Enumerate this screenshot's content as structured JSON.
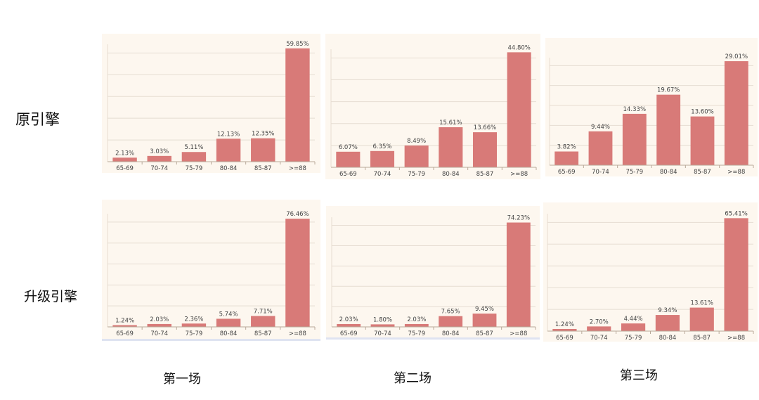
{
  "row_labels": [
    "原引擎",
    "升级引擎"
  ],
  "col_labels": [
    "第一场",
    "第二场",
    "第三场"
  ],
  "colors": {
    "bar": "#d87a78",
    "panel_bg": "#fdf7ef",
    "grid": "#e6ddd2",
    "axis": "#b9aa9a",
    "text": "#444444"
  },
  "chart_data": [
    {
      "type": "bar",
      "categories": [
        "65-69",
        "70-74",
        "75-79",
        "80-84",
        "85-87",
        ">=88"
      ],
      "values": [
        2.13,
        3.03,
        5.11,
        12.13,
        12.35,
        59.85
      ],
      "value_labels": [
        "2.13%",
        "3.03%",
        "5.11%",
        "12.13%",
        "12.35%",
        "59.85%"
      ],
      "ylim": [
        0,
        62
      ],
      "grid": true
    },
    {
      "type": "bar",
      "categories": [
        "65-69",
        "70-74",
        "75-79",
        "80-84",
        "85-87",
        ">=88"
      ],
      "values": [
        6.07,
        6.35,
        8.49,
        15.61,
        13.66,
        44.8
      ],
      "value_labels": [
        "6.07%",
        "6.35%",
        "8.49%",
        "15.61%",
        "13.66%",
        "44.80%"
      ],
      "ylim": [
        0,
        46
      ],
      "grid": true
    },
    {
      "type": "bar",
      "categories": [
        "65-69",
        "70-74",
        "75-79",
        "80-84",
        "85-87",
        ">=88"
      ],
      "values": [
        3.82,
        9.44,
        14.33,
        19.67,
        13.6,
        29.01
      ],
      "value_labels": [
        "3.82%",
        "9.44%",
        "14.33%",
        "19.67%",
        "13.60%",
        "29.01%"
      ],
      "ylim": [
        0,
        30
      ],
      "grid": true
    },
    {
      "type": "bar",
      "categories": [
        "65-69",
        "70-74",
        "75-79",
        "80-84",
        "85-87",
        ">=88"
      ],
      "values": [
        1.24,
        2.03,
        2.36,
        5.74,
        7.71,
        76.46
      ],
      "value_labels": [
        "1.24%",
        "2.03%",
        "2.36%",
        "5.74%",
        "7.71%",
        "76.46%"
      ],
      "ylim": [
        0,
        80
      ],
      "grid": true
    },
    {
      "type": "bar",
      "categories": [
        "65-69",
        "70-74",
        "75-79",
        "80-84",
        "85-87",
        ">=88"
      ],
      "values": [
        2.03,
        1.8,
        2.03,
        7.65,
        9.45,
        74.23
      ],
      "value_labels": [
        "2.03%",
        "1.80%",
        "2.03%",
        "7.65%",
        "9.45%",
        "74.23%"
      ],
      "ylim": [
        0,
        78
      ],
      "grid": true
    },
    {
      "type": "bar",
      "categories": [
        "65-69",
        "70-74",
        "75-79",
        "80-84",
        "85-87",
        ">=88"
      ],
      "values": [
        1.24,
        2.7,
        4.44,
        9.34,
        13.61,
        65.41
      ],
      "value_labels": [
        "1.24%",
        "2.70%",
        "4.44%",
        "9.34%",
        "13.61%",
        "65.41%"
      ],
      "ylim": [
        0,
        68
      ],
      "grid": true
    }
  ]
}
